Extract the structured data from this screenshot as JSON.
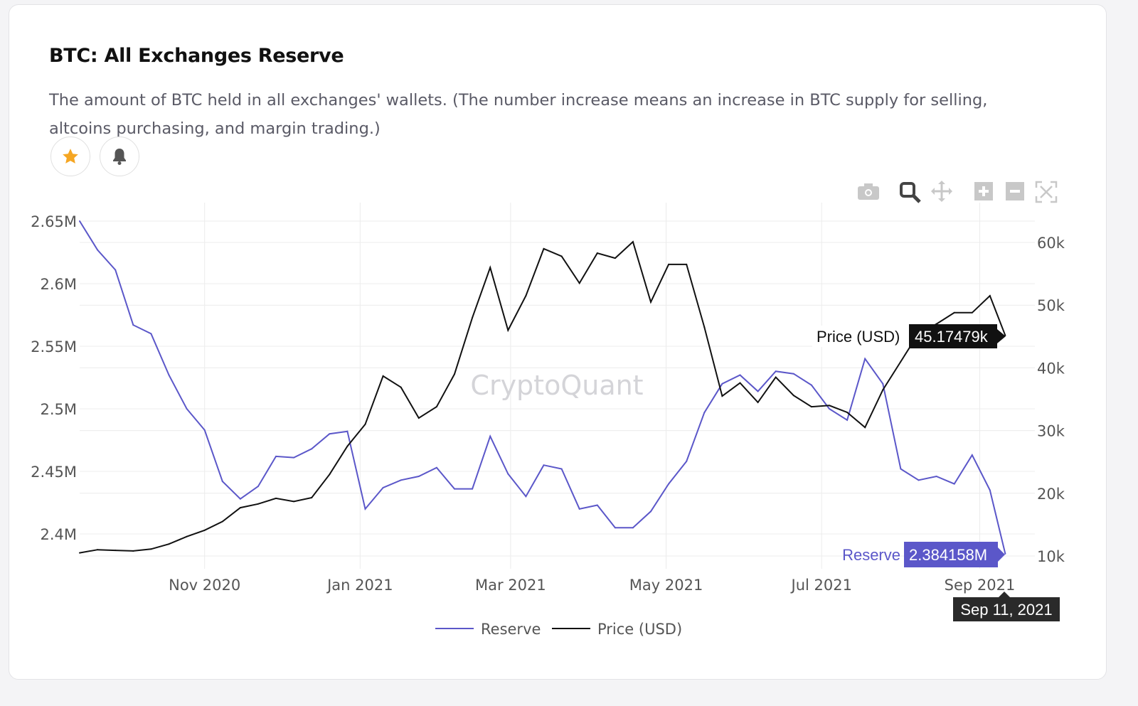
{
  "header": {
    "title": "BTC: All Exchanges Reserve",
    "description": "The amount of BTC held in all exchanges' wallets. (The number increase means an increase in BTC supply for selling, altcoins purchasing, and margin trading.)"
  },
  "actions": [
    {
      "icon": "star-icon",
      "color": "#f5a623"
    },
    {
      "icon": "bell-icon",
      "color": "#555555"
    }
  ],
  "toolbar": [
    "camera-icon",
    "zoom-icon",
    "pan-icon",
    "zoom-in-icon",
    "zoom-out-icon",
    "autoscale-icon"
  ],
  "watermark": "CryptoQuant",
  "chart_data": {
    "type": "line",
    "title": "BTC: All Exchanges Reserve",
    "x_ticks": [
      {
        "label": "Nov 2020",
        "date": "2020-11-01"
      },
      {
        "label": "Jan 2021",
        "date": "2021-01-01"
      },
      {
        "label": "Mar 2021",
        "date": "2021-03-01"
      },
      {
        "label": "May 2021",
        "date": "2021-05-01"
      },
      {
        "label": "Jul 2021",
        "date": "2021-07-01"
      },
      {
        "label": "Sep 2021",
        "date": "2021-09-01"
      }
    ],
    "xlim": [
      "2020-09-13",
      "2021-09-11"
    ],
    "y_left": {
      "ticks": [
        "2.4M",
        "2.45M",
        "2.5M",
        "2.55M",
        "2.6M",
        "2.65M"
      ],
      "tick_values": [
        2.4,
        2.45,
        2.5,
        2.55,
        2.6,
        2.65
      ],
      "unit": "M BTC"
    },
    "y_right": {
      "ticks": [
        "10k",
        "20k",
        "30k",
        "40k",
        "50k",
        "60k"
      ],
      "tick_values": [
        10,
        20,
        30,
        40,
        50,
        60
      ],
      "unit": "k USD"
    },
    "grid": true,
    "legend_position": "bottom",
    "series": [
      {
        "name": "Reserve",
        "axis": "left",
        "color": "#5b57c9",
        "values": [
          2.65,
          2.627,
          2.611,
          2.567,
          2.56,
          2.527,
          2.5,
          2.483,
          2.442,
          2.428,
          2.438,
          2.462,
          2.461,
          2.468,
          2.48,
          2.482,
          2.42,
          2.437,
          2.443,
          2.446,
          2.453,
          2.436,
          2.436,
          2.478,
          2.448,
          2.43,
          2.455,
          2.452,
          2.42,
          2.423,
          2.405,
          2.405,
          2.418,
          2.44,
          2.458,
          2.497,
          2.52,
          2.527,
          2.514,
          2.53,
          2.528,
          2.519,
          2.5,
          2.491,
          2.54,
          2.52,
          2.452,
          2.443,
          2.446,
          2.44,
          2.463,
          2.435,
          2.384158
        ]
      },
      {
        "name": "Price (USD)",
        "axis": "right",
        "color": "#111111",
        "values": [
          10.5,
          11.0,
          10.9,
          10.8,
          11.1,
          11.9,
          13.1,
          14.1,
          15.5,
          17.7,
          18.3,
          19.2,
          18.7,
          19.3,
          23.0,
          27.5,
          31.0,
          38.7,
          36.9,
          32.0,
          33.8,
          39.0,
          48.0,
          56.0,
          46.0,
          51.5,
          59.0,
          57.8,
          53.5,
          58.3,
          57.5,
          60.1,
          50.5,
          56.5,
          56.5,
          46.5,
          35.5,
          37.6,
          34.5,
          38.5,
          35.6,
          33.8,
          34.0,
          32.9,
          30.5,
          36.5,
          41.0,
          45.5,
          47.0,
          48.8,
          48.8,
          51.5,
          45.17479
        ]
      }
    ],
    "x_note": "weekly samples from 2020-09-13, last point 2021-09-11",
    "hover": {
      "date_label": "Sep 11, 2021",
      "reserve_label": "Reserve",
      "reserve_value": "2.384158M",
      "price_label": "Price (USD)",
      "price_value": "45.17479k"
    }
  }
}
